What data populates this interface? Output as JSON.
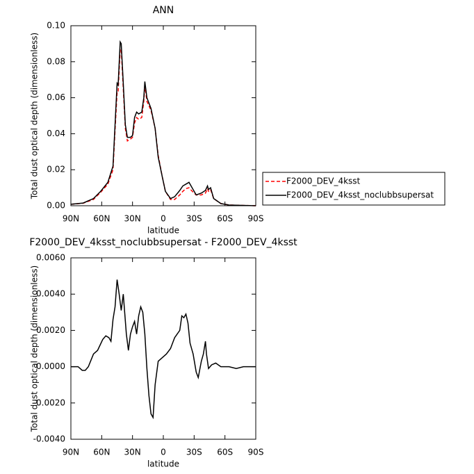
{
  "chart_data": [
    {
      "type": "line",
      "title": "ANN",
      "x_label": "latitude",
      "y_label": "Total dust optical depth (dimensionless)",
      "x": [
        90,
        78,
        68,
        61,
        54,
        49,
        47,
        45,
        44,
        42,
        41,
        39,
        37,
        35,
        32,
        30,
        28,
        26,
        24,
        21,
        19,
        18,
        16,
        12,
        8,
        5,
        1,
        -2,
        -7,
        -11,
        -16,
        -19,
        -22,
        -25,
        -29,
        -32,
        -37,
        -41,
        -43,
        -44,
        -46,
        -49,
        -56,
        -64,
        -90
      ],
      "series": [
        {
          "name": "F2000_DEV_4ksst",
          "color": "#ff0000",
          "line_style": "dashed",
          "values": [
            0.0008,
            0.0014,
            0.0035,
            0.0075,
            0.012,
            0.02,
            0.042,
            0.063,
            0.063,
            0.087,
            0.087,
            0.065,
            0.043,
            0.036,
            0.037,
            0.038,
            0.046,
            0.049,
            0.048,
            0.049,
            0.058,
            0.067,
            0.058,
            0.053,
            0.043,
            0.028,
            0.016,
            0.008,
            0.0035,
            0.0035,
            0.006,
            0.008,
            0.0095,
            0.01,
            0.0075,
            0.006,
            0.006,
            0.007,
            0.0095,
            0.008,
            0.009,
            0.004,
            0.0012,
            0.0004,
            0.0
          ]
        },
        {
          "name": "F2000_DEV_4ksst_noclubbsupersat",
          "color": "#000000",
          "line_style": "solid",
          "values": [
            0.0008,
            0.0015,
            0.004,
            0.008,
            0.013,
            0.022,
            0.045,
            0.068,
            0.067,
            0.091,
            0.09,
            0.068,
            0.045,
            0.038,
            0.038,
            0.039,
            0.049,
            0.052,
            0.051,
            0.052,
            0.06,
            0.069,
            0.06,
            0.054,
            0.043,
            0.027,
            0.016,
            0.008,
            0.004,
            0.005,
            0.0085,
            0.011,
            0.012,
            0.013,
            0.009,
            0.006,
            0.007,
            0.0085,
            0.011,
            0.009,
            0.01,
            0.004,
            0.0012,
            0.0004,
            0.0
          ]
        }
      ],
      "xlim": [
        90,
        -90
      ],
      "xticks": [
        {
          "value": 90,
          "label": "90N"
        },
        {
          "value": 60,
          "label": "60N"
        },
        {
          "value": 30,
          "label": "30N"
        },
        0,
        {
          "value": -30,
          "label": "30S"
        },
        {
          "value": -60,
          "label": "60S"
        },
        {
          "value": -90,
          "label": "90S"
        }
      ],
      "ylim": [
        0,
        0.1
      ],
      "yticks": [
        {
          "value": 0,
          "label": "0.00"
        },
        0.02,
        0.04,
        0.06,
        0.08,
        {
          "value": 0.1,
          "label": "0.10"
        }
      ],
      "legend": "outside-right"
    },
    {
      "type": "line",
      "title": "F2000_DEV_4ksst_noclubbsupersat - F2000_DEV_4ksst",
      "x_label": "latitude",
      "y_label": "Total dust optical depth (dimensionless)",
      "x": [
        90,
        83,
        79,
        76,
        73,
        68,
        64,
        59,
        56,
        53,
        51,
        49,
        47,
        45,
        43,
        41,
        39,
        36,
        34,
        32,
        30,
        28,
        26,
        24,
        22,
        20,
        18,
        16,
        14,
        12,
        10,
        8,
        5,
        1,
        -3,
        -7,
        -11,
        -16,
        -18,
        -20,
        -22,
        -24,
        -26,
        -29,
        -32,
        -34,
        -37,
        -39,
        -41,
        -42,
        -44,
        -47,
        -51,
        -56,
        -64,
        -71,
        -78,
        -90
      ],
      "series": [
        {
          "color": "#000000",
          "line_style": "solid",
          "values": [
            0.0,
            0.0,
            -0.0002,
            -0.0002,
            0.0,
            0.0007,
            0.0009,
            0.0015,
            0.0017,
            0.0016,
            0.0014,
            0.0026,
            0.0033,
            0.0048,
            0.004,
            0.0031,
            0.004,
            0.0018,
            0.0009,
            0.0018,
            0.0022,
            0.0025,
            0.0018,
            0.0028,
            0.0033,
            0.003,
            0.0018,
            -0.0001,
            -0.0016,
            -0.0026,
            -0.0028,
            -0.001,
            0.0003,
            0.0005,
            0.0007,
            0.001,
            0.0016,
            0.002,
            0.0028,
            0.0027,
            0.0029,
            0.0024,
            0.0013,
            0.0007,
            -0.0003,
            -0.0006,
            0.0003,
            0.0007,
            0.0014,
            0.0007,
            -0.0001,
            0.0001,
            0.0002,
            0.0,
            0.0,
            -0.0001,
            0.0,
            0.0
          ]
        }
      ],
      "xlim": [
        90,
        -90
      ],
      "xticks": [
        {
          "value": 90,
          "label": "90N"
        },
        {
          "value": 60,
          "label": "60N"
        },
        {
          "value": 30,
          "label": "30N"
        },
        0,
        {
          "value": -30,
          "label": "30S"
        },
        {
          "value": -60,
          "label": "60S"
        },
        {
          "value": -90,
          "label": "90S"
        }
      ],
      "ylim": [
        -0.004,
        0.006
      ],
      "yticks": [
        {
          "value": -0.004,
          "label": "-0.0040"
        },
        {
          "value": -0.002,
          "label": "-0.0020"
        },
        {
          "value": 0,
          "label": "0.0000"
        },
        {
          "value": 0.002,
          "label": "0.0020"
        },
        {
          "value": 0.004,
          "label": "0.0040"
        },
        {
          "value": 0.006,
          "label": "0.0060"
        }
      ]
    }
  ]
}
